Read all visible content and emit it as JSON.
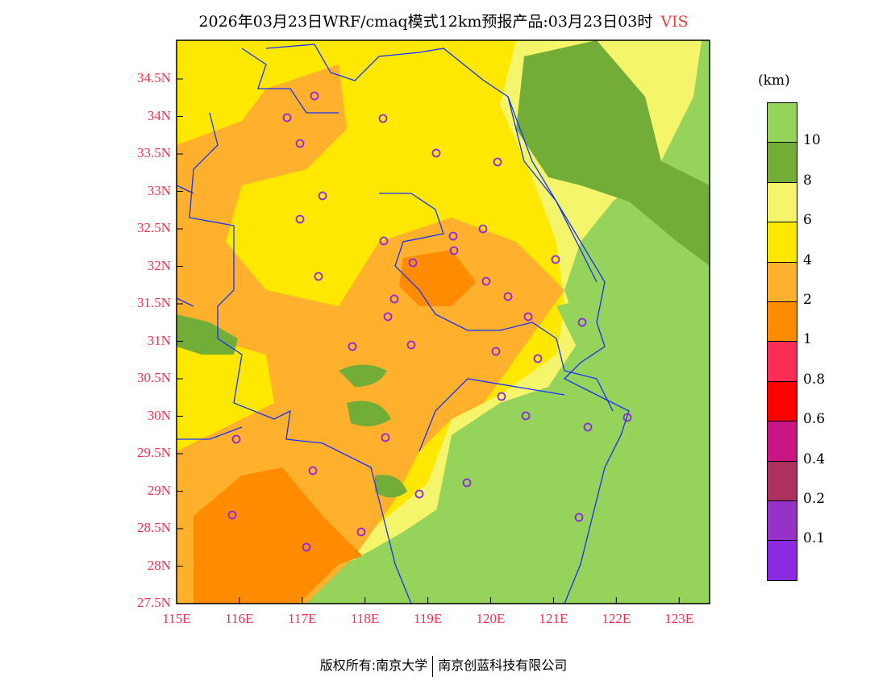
{
  "title": {
    "text": "2026年03月23日WRF/cmaq模式12km预报产品:03月23日03时",
    "variable": "VIS"
  },
  "axes": {
    "lat_labels": [
      "34.5N",
      "34N",
      "33.5N",
      "33N",
      "32.5N",
      "32N",
      "31.5N",
      "31N",
      "30.5N",
      "30N",
      "29.5N",
      "29N",
      "28.5N",
      "28N",
      "27.5N"
    ],
    "lon_labels": [
      "115E",
      "116E",
      "117E",
      "118E",
      "119E",
      "120E",
      "121E",
      "122E",
      "123E"
    ]
  },
  "colorbar": {
    "unit": "(km)",
    "colors": [
      "#96d35a",
      "#72ad38",
      "#f4f56a",
      "#ffe800",
      "#ffb02c",
      "#ff8c00",
      "#fb2d56",
      "#ff0000",
      "#c81785",
      "#ae305e",
      "#9632c8",
      "#8a2be2"
    ],
    "labels": [
      "10",
      "8",
      "6",
      "4",
      "2",
      "1",
      "0.8",
      "0.6",
      "0.4",
      "0.2",
      "0.1"
    ]
  },
  "footer": {
    "left": "版权所有:南京大学",
    "right": "南京创蓝科技有限公司"
  }
}
